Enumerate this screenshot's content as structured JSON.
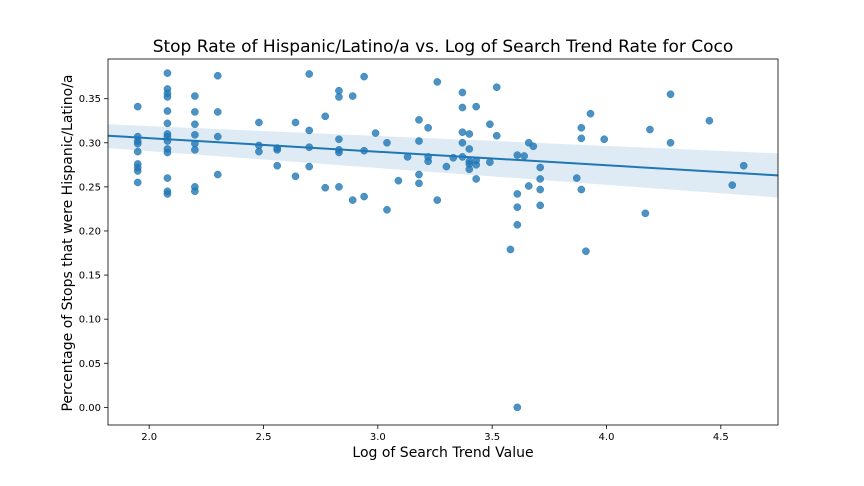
{
  "chart_data": {
    "type": "scatter",
    "title": "Stop Rate of Hispanic/Latino/a vs. Log of Search Trend Rate for Coco",
    "xlabel": "Log of Search Trend Value",
    "ylabel": "Percentage of Stops that were Hispanic/Latino/a",
    "xlim": [
      1.82,
      4.75
    ],
    "ylim": [
      -0.02,
      0.395
    ],
    "xticks": [
      "2.0",
      "2.5",
      "3.0",
      "3.5",
      "4.0",
      "4.5"
    ],
    "yticks": [
      "0.00",
      "0.05",
      "0.10",
      "0.15",
      "0.20",
      "0.25",
      "0.30",
      "0.35"
    ],
    "grid": false,
    "regression": {
      "x": [
        1.82,
        4.75
      ],
      "y": [
        0.308,
        0.263
      ],
      "ci_low": [
        0.294,
        0.238
      ],
      "ci_high": [
        0.321,
        0.288
      ]
    },
    "colors": {
      "points": "#1f77b4",
      "line": "#1f77b4",
      "band": "#1f77b4"
    },
    "points": [
      [
        1.95,
        0.341
      ],
      [
        1.95,
        0.307
      ],
      [
        1.95,
        0.302
      ],
      [
        1.95,
        0.299
      ],
      [
        1.95,
        0.29
      ],
      [
        1.95,
        0.276
      ],
      [
        1.95,
        0.272
      ],
      [
        1.95,
        0.268
      ],
      [
        1.95,
        0.255
      ],
      [
        2.08,
        0.379
      ],
      [
        2.08,
        0.361
      ],
      [
        2.08,
        0.356
      ],
      [
        2.08,
        0.352
      ],
      [
        2.08,
        0.336
      ],
      [
        2.08,
        0.322
      ],
      [
        2.08,
        0.31
      ],
      [
        2.08,
        0.307
      ],
      [
        2.08,
        0.302
      ],
      [
        2.08,
        0.293
      ],
      [
        2.08,
        0.289
      ],
      [
        2.08,
        0.26
      ],
      [
        2.08,
        0.245
      ],
      [
        2.08,
        0.242
      ],
      [
        2.2,
        0.353
      ],
      [
        2.2,
        0.335
      ],
      [
        2.2,
        0.321
      ],
      [
        2.2,
        0.309
      ],
      [
        2.2,
        0.299
      ],
      [
        2.2,
        0.292
      ],
      [
        2.2,
        0.25
      ],
      [
        2.2,
        0.245
      ],
      [
        2.3,
        0.376
      ],
      [
        2.3,
        0.335
      ],
      [
        2.3,
        0.307
      ],
      [
        2.3,
        0.264
      ],
      [
        2.48,
        0.323
      ],
      [
        2.48,
        0.297
      ],
      [
        2.48,
        0.29
      ],
      [
        2.56,
        0.294
      ],
      [
        2.56,
        0.292
      ],
      [
        2.56,
        0.274
      ],
      [
        2.64,
        0.323
      ],
      [
        2.64,
        0.262
      ],
      [
        2.7,
        0.378
      ],
      [
        2.7,
        0.314
      ],
      [
        2.7,
        0.295
      ],
      [
        2.7,
        0.273
      ],
      [
        2.77,
        0.33
      ],
      [
        2.77,
        0.249
      ],
      [
        2.83,
        0.359
      ],
      [
        2.83,
        0.352
      ],
      [
        2.83,
        0.304
      ],
      [
        2.83,
        0.292
      ],
      [
        2.83,
        0.289
      ],
      [
        2.83,
        0.25
      ],
      [
        2.89,
        0.353
      ],
      [
        2.89,
        0.235
      ],
      [
        2.94,
        0.375
      ],
      [
        2.94,
        0.291
      ],
      [
        2.94,
        0.239
      ],
      [
        2.99,
        0.311
      ],
      [
        3.04,
        0.3
      ],
      [
        3.04,
        0.224
      ],
      [
        3.09,
        0.257
      ],
      [
        3.13,
        0.284
      ],
      [
        3.18,
        0.326
      ],
      [
        3.18,
        0.302
      ],
      [
        3.18,
        0.264
      ],
      [
        3.18,
        0.254
      ],
      [
        3.22,
        0.317
      ],
      [
        3.22,
        0.284
      ],
      [
        3.22,
        0.279
      ],
      [
        3.26,
        0.369
      ],
      [
        3.26,
        0.235
      ],
      [
        3.3,
        0.273
      ],
      [
        3.33,
        0.283
      ],
      [
        3.37,
        0.357
      ],
      [
        3.37,
        0.34
      ],
      [
        3.37,
        0.312
      ],
      [
        3.37,
        0.3
      ],
      [
        3.37,
        0.284
      ],
      [
        3.4,
        0.31
      ],
      [
        3.4,
        0.293
      ],
      [
        3.4,
        0.279
      ],
      [
        3.4,
        0.276
      ],
      [
        3.4,
        0.27
      ],
      [
        3.43,
        0.341
      ],
      [
        3.43,
        0.28
      ],
      [
        3.43,
        0.275
      ],
      [
        3.43,
        0.259
      ],
      [
        3.49,
        0.321
      ],
      [
        3.49,
        0.278
      ],
      [
        3.52,
        0.363
      ],
      [
        3.52,
        0.308
      ],
      [
        3.58,
        0.179
      ],
      [
        3.61,
        0.286
      ],
      [
        3.61,
        0.242
      ],
      [
        3.61,
        0.227
      ],
      [
        3.61,
        0.207
      ],
      [
        3.61,
        0.0
      ],
      [
        3.64,
        0.285
      ],
      [
        3.66,
        0.3
      ],
      [
        3.66,
        0.251
      ],
      [
        3.68,
        0.296
      ],
      [
        3.71,
        0.272
      ],
      [
        3.71,
        0.259
      ],
      [
        3.71,
        0.247
      ],
      [
        3.71,
        0.229
      ],
      [
        3.87,
        0.26
      ],
      [
        3.89,
        0.317
      ],
      [
        3.89,
        0.305
      ],
      [
        3.89,
        0.247
      ],
      [
        3.91,
        0.177
      ],
      [
        3.93,
        0.333
      ],
      [
        3.99,
        0.304
      ],
      [
        4.17,
        0.22
      ],
      [
        4.19,
        0.315
      ],
      [
        4.28,
        0.355
      ],
      [
        4.28,
        0.3
      ],
      [
        4.45,
        0.325
      ],
      [
        4.55,
        0.252
      ],
      [
        4.6,
        0.274
      ]
    ]
  }
}
